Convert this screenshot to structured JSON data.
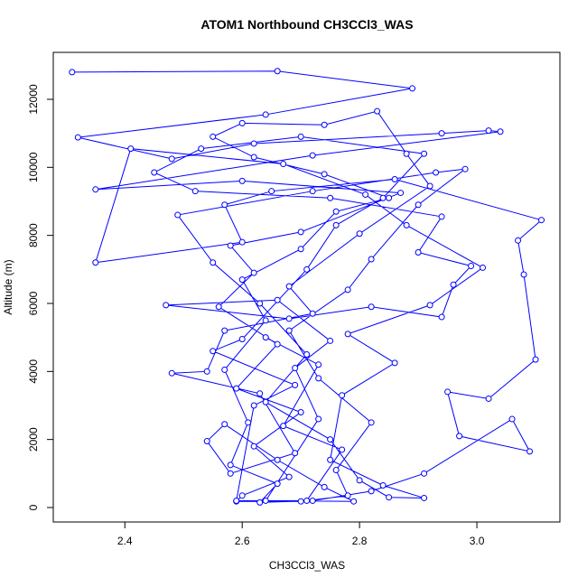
{
  "chart_data": {
    "type": "scatter-line",
    "title": "ATOM1 Northbound CH3CCl3_WAS",
    "x_label": "CH3CCl3_WAS",
    "y_label": "Altitude (m)",
    "color": "#0000ff",
    "xlim": [
      2.278,
      3.1415
    ],
    "ylim": [
      -425,
      13380
    ],
    "xticks": [
      2.4,
      2.6,
      2.8,
      {
        "value": 3,
        "label": "3.0"
      }
    ],
    "yticks": [
      0,
      2000,
      4000,
      6000,
      8000,
      10000,
      12000
    ],
    "series": [
      {
        "x": [
          2.31,
          2.66,
          2.89,
          2.64,
          2.32,
          2.48,
          2.62,
          2.94,
          3.02,
          3.04,
          2.72,
          2.35,
          2.6,
          2.87,
          2.7,
          2.58,
          2.62,
          2.56,
          2.66,
          2.59,
          2.7,
          2.62,
          2.68,
          2.6,
          2.59,
          2.7,
          2.78,
          2.76,
          2.82,
          2.73,
          2.68,
          2.78,
          2.82,
          2.9,
          2.98,
          2.93,
          2.72,
          2.49,
          2.55,
          2.63,
          2.71,
          2.64,
          2.75,
          2.8,
          2.85,
          2.91,
          2.84,
          2.75,
          2.77,
          2.86,
          2.78,
          2.92,
          3.01,
          2.88,
          2.81,
          2.67,
          2.41,
          2.35,
          2.6,
          2.57,
          2.65,
          2.86,
          3.11,
          3.07,
          3.08,
          3.1,
          3.02,
          2.95,
          2.97,
          3.09,
          3.06,
          2.91,
          2.82,
          2.72,
          2.63,
          2.66,
          2.58,
          2.61,
          2.57,
          2.64,
          2.6,
          2.7,
          2.76,
          2.85,
          2.74,
          2.62,
          2.55,
          2.6,
          2.74,
          2.83,
          2.88,
          2.92,
          2.8,
          2.68,
          2.72,
          2.57,
          2.54,
          2.48,
          2.63,
          2.69,
          2.58,
          2.54,
          2.57,
          2.66,
          2.74,
          2.79,
          2.64,
          2.73,
          2.69,
          2.75,
          2.66,
          2.47,
          2.68,
          2.82,
          2.94,
          2.96,
          2.99,
          2.9,
          2.94,
          2.75,
          2.52,
          2.45,
          2.53,
          2.7,
          2.91,
          2.84,
          2.76,
          2.71,
          2.6,
          2.55,
          2.69,
          2.62,
          2.59,
          2.71,
          2.77,
          2.67,
          2.73,
          2.64
        ],
        "values": [
          12800,
          12830,
          12320,
          11550,
          10880,
          10250,
          10700,
          11000,
          11080,
          11050,
          10350,
          9350,
          9600,
          9250,
          8100,
          7700,
          6900,
          5900,
          4800,
          3500,
          2800,
          1800,
          900,
          350,
          180,
          180,
          350,
          1100,
          2500,
          3800,
          5200,
          6400,
          7300,
          8900,
          9950,
          9850,
          9300,
          8600,
          7200,
          6000,
          4500,
          3100,
          2000,
          800,
          300,
          280,
          650,
          1400,
          3300,
          4250,
          5100,
          5950,
          7050,
          8300,
          9200,
          10100,
          10550,
          7200,
          7800,
          8900,
          9300,
          9650,
          8450,
          7850,
          6850,
          4350,
          3200,
          3400,
          2100,
          1650,
          2600,
          1000,
          480,
          200,
          150,
          700,
          1250,
          2500,
          4050,
          5500,
          6700,
          7600,
          8700,
          9100,
          9800,
          10300,
          10900,
          11300,
          11250,
          11650,
          10400,
          9450,
          8050,
          6500,
          5700,
          5200,
          4000,
          3950,
          3350,
          1600,
          1000,
          1950,
          2450,
          1400,
          600,
          180,
          200,
          2600,
          4100,
          4900,
          6100,
          5950,
          5550,
          5900,
          5600,
          6550,
          7100,
          7500,
          8550,
          9100,
          9300,
          9850,
          10550,
          10900,
          10400,
          9100,
          8300,
          7000,
          4950,
          4600,
          3600,
          3000,
          200,
          200,
          1700,
          2400,
          4200,
          5000
        ]
      }
    ]
  }
}
